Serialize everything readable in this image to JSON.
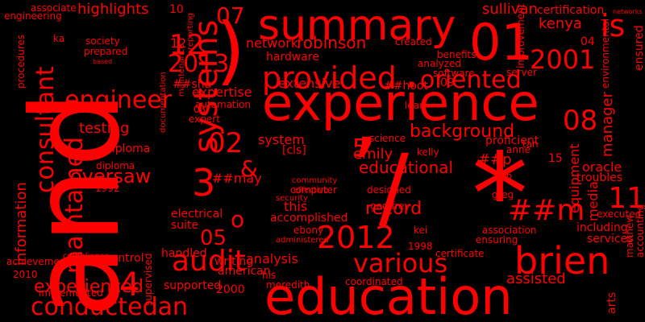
{
  "cloud": {
    "background": "#000000",
    "color": "#ff0000",
    "words": [
      "and",
      "experience",
      "education",
      "summary",
      "01",
      "/",
      "*",
      "’",
      ")",
      "2012",
      "brien",
      "conductedan",
      "consultant",
      "audit",
      "various",
      "provided",
      "2001",
      "is",
      "oriented",
      "systems",
      "maintained",
      "engineer",
      "information",
      "experienced",
      "3",
      "##m",
      "11",
      "4",
      "05",
      "2013",
      "12",
      "07",
      "02",
      "5",
      "o",
      "&",
      "background",
      "educational",
      "record",
      "analysis",
      "oversaw",
      "testing",
      "kenya",
      "sullivan",
      "associate",
      "engineering",
      "highlights",
      "robinson",
      "network",
      "hardware",
      "extensive",
      "expertise",
      "automation",
      "diploma",
      "emily",
      "[cls]",
      "system",
      "this",
      "accomplished",
      "assisted",
      "manager",
      "equipment",
      "media",
      "including",
      "services",
      "association",
      "certificate",
      "coordinated",
      "meredith",
      "2000",
      "supported",
      "electrical",
      "suite",
      "handled",
      "writing",
      "american",
      "control",
      "supervised",
      "implemented",
      "achievements",
      "procedures",
      "documentation",
      "maintenance",
      "reporting",
      "expert",
      "03",
      "science",
      "computer",
      "security",
      "community",
      "effective",
      "geoffrey",
      "ebony",
      "kelly",
      "kei",
      "1998",
      "lean",
      "software",
      "analyzed",
      "benefits",
      "created",
      "server",
      "improvement",
      "environmental",
      "ensured",
      "oracle",
      "troubles",
      "greg",
      "anne",
      "tan",
      "proficient",
      "certification",
      "networks",
      "04",
      "12",
      "15",
      "##sha",
      "##hoot",
      "##p",
      "##may",
      "09",
      "10",
      "ka",
      "society",
      "prepared",
      "based",
      "diploma",
      "2010",
      "1992",
      "executed",
      "accounting",
      "matthew",
      "arts",
      "ensuring",
      "compliance",
      "his",
      "administered",
      "designed",
      "06",
      "08"
    ]
  }
}
